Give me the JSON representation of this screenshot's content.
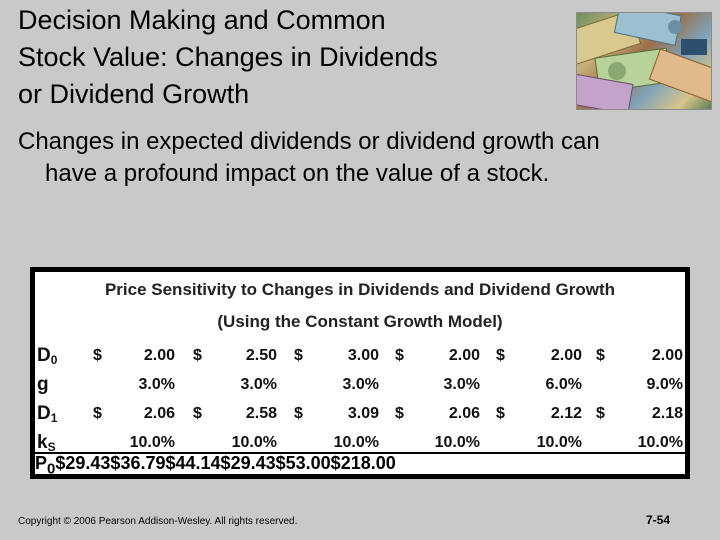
{
  "title": "Decision Making and Common Stock Value: Changes in Dividends or Dividend Growth",
  "title_lines": [
    "Decision Making and Common",
    "Stock Value: Changes in Dividends",
    "or Dividend Growth"
  ],
  "body_lines": [
    "Changes in expected dividends or dividend growth can",
    "have a profound impact on the value of a stock."
  ],
  "table": {
    "title_line1": "Price Sensitivity to Changes in Dividends and Dividend Growth",
    "title_line2": "(Using the Constant Growth Model)",
    "rows": [
      {
        "label": "D",
        "sub": "0",
        "dollar": true,
        "values": [
          "2.00",
          "2.50",
          "3.00",
          "2.00",
          "2.00",
          "2.00"
        ]
      },
      {
        "label": "g",
        "sub": "",
        "dollar": false,
        "values": [
          "3.0%",
          "3.0%",
          "3.0%",
          "3.0%",
          "6.0%",
          "9.0%"
        ]
      },
      {
        "label": "D",
        "sub": "1",
        "dollar": true,
        "values": [
          "2.06",
          "2.58",
          "3.09",
          "2.06",
          "2.12",
          "2.18"
        ]
      },
      {
        "label": "k",
        "sub": "S",
        "dollar": false,
        "values": [
          "10.0%",
          "10.0%",
          "10.0%",
          "10.0%",
          "10.0%",
          "10.0%"
        ]
      }
    ],
    "price_row": {
      "label": "P",
      "sub": "0",
      "dollar": "$",
      "values": [
        "29.43",
        "36.79",
        "44.14",
        "29.43",
        "53.00",
        "218.00"
      ]
    },
    "dollar_sign": "$"
  },
  "footer": "Copyright © 2006 Pearson Addison-Wesley. All rights reserved.",
  "page_number": "7-54"
}
